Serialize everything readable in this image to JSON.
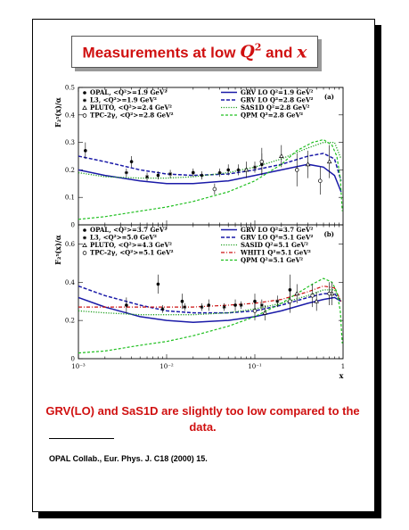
{
  "title": {
    "prefix": "Measurements at low ",
    "q": "Q",
    "q_exp": "2",
    "mid": " and ",
    "x": "x"
  },
  "conclusion": "GRV(LO) and SaS1D are slightly too low compared to the data.",
  "reference": "OPAL Collab., Eur. Phys. J. C18 (2000) 15.",
  "colors": {
    "title": "#d01010",
    "grv_solid": "#1a1aa8",
    "grv_dashed": "#1a1aa8",
    "sas1d": "#20a020",
    "qpm": "#20c020",
    "whit1": "#cc1010"
  },
  "chart_data": [
    {
      "type": "scatter",
      "panel_label": "(a)",
      "ylabel": "F₂ˠ(x)/α",
      "xscale": "log",
      "xlim": [
        0.001,
        1
      ],
      "ylim": [
        0,
        0.5
      ],
      "yticks": [
        "0",
        "0.1",
        "0.2",
        "0.3",
        "0.4",
        "0.5"
      ],
      "yticks_values": [
        0,
        0.1,
        0.2,
        0.3,
        0.4,
        0.5
      ],
      "legend_data": [
        {
          "marker": "filled-circle",
          "text": "OPAL, <Q²>=1.9 GeV²"
        },
        {
          "marker": "star",
          "text": "L3, <Q²>=1.9 GeV²"
        },
        {
          "marker": "triangle",
          "text": "PLUTO, <Q²>=2.4 GeV²"
        },
        {
          "marker": "open-circle",
          "text": "TPC-2γ, <Q²>=2.8 GeV²"
        }
      ],
      "legend_curves": [
        {
          "style": "solid-blue",
          "text": "GRV LO Q²=1.9 GeV²"
        },
        {
          "style": "dashed-blue",
          "text": "GRV LO Q²=2.8 GeV²"
        },
        {
          "style": "dotted-green",
          "text": "SAS1D Q²=2.8 GeV²"
        },
        {
          "style": "dashed-green",
          "text": "QPM Q²=2.8 GeV²"
        }
      ],
      "series": [
        {
          "name": "OPAL, <Q²>=1.9 GeV²",
          "marker": "filled-circle",
          "x": [
            0.0012,
            0.004,
            0.008,
            0.02,
            0.05,
            0.12
          ],
          "y": [
            0.27,
            0.23,
            0.18,
            0.19,
            0.2,
            0.22
          ],
          "err": [
            0.03,
            0.02,
            0.015,
            0.015,
            0.02,
            0.04
          ]
        },
        {
          "name": "L3, <Q²>=1.9 GeV²",
          "marker": "star",
          "x": [
            0.0035,
            0.006,
            0.011,
            0.025,
            0.04,
            0.065,
            0.1
          ],
          "y": [
            0.19,
            0.175,
            0.185,
            0.18,
            0.19,
            0.2,
            0.21
          ],
          "err": [
            0.015,
            0.015,
            0.015,
            0.015,
            0.015,
            0.02,
            0.02
          ]
        },
        {
          "name": "PLUTO, <Q²>=2.4 GeV²",
          "marker": "triangle",
          "x": [
            0.08,
            0.2,
            0.4,
            0.7
          ],
          "y": [
            0.2,
            0.25,
            0.22,
            0.23
          ],
          "err": [
            0.03,
            0.04,
            0.05,
            0.06
          ]
        },
        {
          "name": "TPC-2γ, <Q²>=2.8 GeV²",
          "marker": "open-circle",
          "x": [
            0.035,
            0.12,
            0.3,
            0.55
          ],
          "y": [
            0.13,
            0.23,
            0.2,
            0.16
          ],
          "err": [
            0.02,
            0.05,
            0.06,
            0.05
          ]
        }
      ],
      "curves": [
        {
          "name": "GRV LO Q²=1.9 GeV²",
          "style": "solid-blue",
          "x": [
            0.001,
            0.002,
            0.005,
            0.01,
            0.02,
            0.05,
            0.1,
            0.2,
            0.4,
            0.6,
            0.8,
            0.95
          ],
          "y": [
            0.2,
            0.18,
            0.16,
            0.15,
            0.15,
            0.16,
            0.18,
            0.2,
            0.22,
            0.21,
            0.18,
            0.12
          ]
        },
        {
          "name": "GRV LO Q²=2.8 GeV²",
          "style": "dashed-blue",
          "x": [
            0.001,
            0.002,
            0.005,
            0.01,
            0.02,
            0.05,
            0.1,
            0.2,
            0.4,
            0.6,
            0.8,
            0.95
          ],
          "y": [
            0.25,
            0.23,
            0.2,
            0.185,
            0.18,
            0.185,
            0.2,
            0.22,
            0.25,
            0.26,
            0.24,
            0.16
          ]
        },
        {
          "name": "SAS1D Q²=2.8 GeV²",
          "style": "dotted-green",
          "x": [
            0.001,
            0.002,
            0.005,
            0.01,
            0.02,
            0.05,
            0.1,
            0.2,
            0.4,
            0.6,
            0.8,
            0.95
          ],
          "y": [
            0.19,
            0.175,
            0.17,
            0.17,
            0.175,
            0.19,
            0.21,
            0.24,
            0.28,
            0.3,
            0.3,
            0.24
          ]
        },
        {
          "name": "QPM Q²=2.8 GeV²",
          "style": "dashed-green",
          "x": [
            0.001,
            0.002,
            0.005,
            0.01,
            0.02,
            0.05,
            0.1,
            0.2,
            0.3,
            0.45,
            0.6,
            0.75,
            0.85,
            0.93,
            0.98
          ],
          "y": [
            0.02,
            0.03,
            0.05,
            0.065,
            0.085,
            0.12,
            0.16,
            0.22,
            0.27,
            0.3,
            0.31,
            0.29,
            0.25,
            0.17,
            0.05
          ]
        }
      ]
    },
    {
      "type": "scatter",
      "panel_label": "(b)",
      "ylabel": "F₂ˠ(x)/α",
      "xlabel": "x",
      "xscale": "log",
      "xlim": [
        0.001,
        1
      ],
      "ylim": [
        0,
        0.7
      ],
      "xticks": [
        "10⁻³",
        "10⁻²",
        "10⁻¹",
        "1"
      ],
      "xticks_values": [
        0.001,
        0.01,
        0.1,
        1
      ],
      "yticks": [
        "0",
        "0.2",
        "0.4",
        "0.6"
      ],
      "yticks_values": [
        0,
        0.2,
        0.4,
        0.6
      ],
      "legend_data": [
        {
          "marker": "filled-circle",
          "text": "OPAL, <Q²>=3.7 GeV²"
        },
        {
          "marker": "star",
          "text": "L3, <Q²>=5.0 GeV²"
        },
        {
          "marker": "triangle",
          "text": "PLUTO, <Q²>=4.3 GeV²"
        },
        {
          "marker": "open-circle",
          "text": "TPC-2γ, <Q²>=5.1 GeV²"
        }
      ],
      "legend_curves": [
        {
          "style": "solid-blue",
          "text": "GRV LO Q²=3.7 GeV²"
        },
        {
          "style": "dashed-blue",
          "text": "GRV LO Q²=5.1 GeV²"
        },
        {
          "style": "dotted-green",
          "text": "SASID Q²=5.1 GeV²"
        },
        {
          "style": "dashdot-red",
          "text": "WHIT1 Q²=5.1 GeV²"
        },
        {
          "style": "dashed-green",
          "text": "QPM Q²=5.1 GeV²"
        }
      ],
      "series": [
        {
          "name": "OPAL, <Q²>=3.7 GeV²",
          "marker": "filled-circle",
          "x": [
            0.0035,
            0.008,
            0.015,
            0.03,
            0.06,
            0.1,
            0.25
          ],
          "y": [
            0.28,
            0.39,
            0.3,
            0.28,
            0.28,
            0.3,
            0.36
          ],
          "err": [
            0.04,
            0.05,
            0.04,
            0.03,
            0.03,
            0.04,
            0.08
          ]
        },
        {
          "name": "L3, <Q²>=5.0 GeV²",
          "marker": "star",
          "x": [
            0.009,
            0.016,
            0.025,
            0.045,
            0.07,
            0.12,
            0.18
          ],
          "y": [
            0.26,
            0.27,
            0.27,
            0.27,
            0.28,
            0.28,
            0.3
          ],
          "err": [
            0.02,
            0.02,
            0.02,
            0.02,
            0.02,
            0.03,
            0.03
          ]
        },
        {
          "name": "PLUTO, <Q²>=4.3 GeV²",
          "marker": "triangle",
          "x": [
            0.13,
            0.3,
            0.5,
            0.75
          ],
          "y": [
            0.24,
            0.34,
            0.3,
            0.34
          ],
          "err": [
            0.04,
            0.05,
            0.05,
            0.06
          ]
        },
        {
          "name": "TPC-2γ, <Q²>=5.1 GeV²",
          "marker": "open-circle",
          "x": [
            0.1,
            0.25,
            0.45,
            0.7
          ],
          "y": [
            0.25,
            0.3,
            0.33,
            0.34
          ],
          "err": [
            0.05,
            0.06,
            0.06,
            0.06
          ]
        }
      ],
      "curves": [
        {
          "name": "GRV LO Q²=3.7 GeV²",
          "style": "solid-blue",
          "x": [
            0.001,
            0.002,
            0.005,
            0.01,
            0.02,
            0.05,
            0.1,
            0.2,
            0.4,
            0.6,
            0.8,
            0.95
          ],
          "y": [
            0.32,
            0.27,
            0.22,
            0.2,
            0.19,
            0.2,
            0.22,
            0.25,
            0.29,
            0.31,
            0.32,
            0.3
          ]
        },
        {
          "name": "GRV LO Q²=5.1 GeV²",
          "style": "dashed-blue",
          "x": [
            0.001,
            0.002,
            0.005,
            0.01,
            0.02,
            0.05,
            0.1,
            0.2,
            0.4,
            0.6,
            0.8,
            0.95
          ],
          "y": [
            0.38,
            0.33,
            0.28,
            0.25,
            0.24,
            0.24,
            0.25,
            0.28,
            0.32,
            0.34,
            0.34,
            0.3
          ]
        },
        {
          "name": "SASID Q²=5.1 GeV²",
          "style": "dotted-green",
          "x": [
            0.001,
            0.002,
            0.005,
            0.01,
            0.02,
            0.05,
            0.1,
            0.2,
            0.4,
            0.6,
            0.8,
            0.95
          ],
          "y": [
            0.25,
            0.24,
            0.23,
            0.23,
            0.23,
            0.24,
            0.26,
            0.29,
            0.33,
            0.36,
            0.36,
            0.3
          ]
        },
        {
          "name": "WHIT1 Q²=5.1 GeV²",
          "style": "dashdot-red",
          "x": [
            0.001,
            0.002,
            0.005,
            0.01,
            0.02,
            0.05,
            0.1,
            0.2,
            0.4,
            0.6,
            0.8,
            0.95
          ],
          "y": [
            0.27,
            0.27,
            0.27,
            0.27,
            0.27,
            0.28,
            0.29,
            0.31,
            0.35,
            0.38,
            0.37,
            0.3
          ]
        },
        {
          "name": "QPM Q²=5.1 GeV²",
          "style": "dashed-green",
          "x": [
            0.001,
            0.002,
            0.005,
            0.01,
            0.02,
            0.05,
            0.1,
            0.2,
            0.3,
            0.45,
            0.6,
            0.75,
            0.85,
            0.93,
            0.98
          ],
          "y": [
            0.03,
            0.04,
            0.07,
            0.09,
            0.12,
            0.17,
            0.22,
            0.29,
            0.34,
            0.39,
            0.42,
            0.4,
            0.35,
            0.25,
            0.08
          ]
        }
      ]
    }
  ]
}
